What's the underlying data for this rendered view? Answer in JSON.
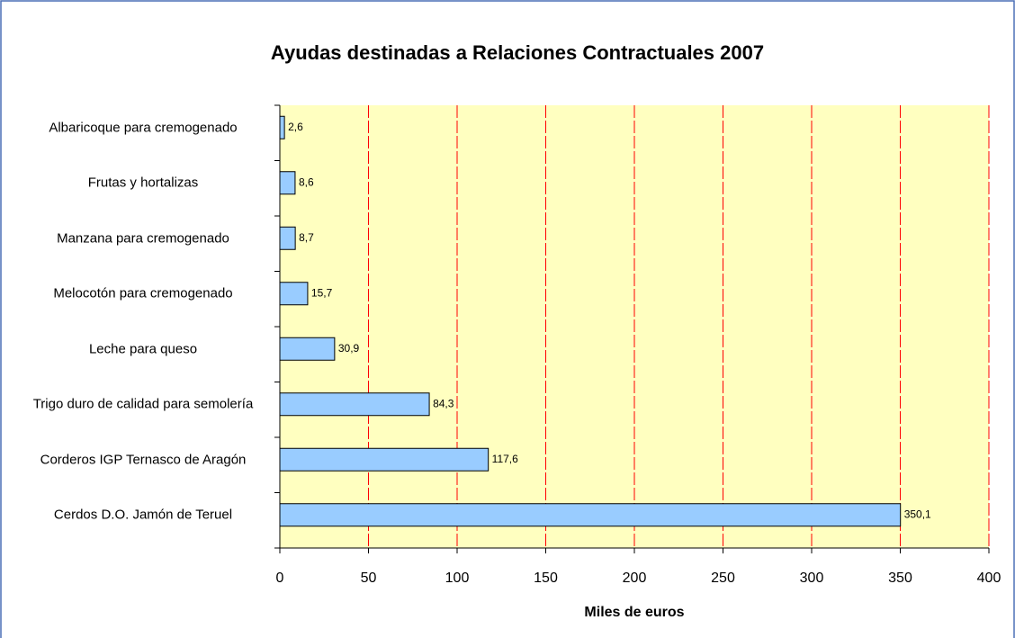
{
  "chart_data": {
    "type": "bar",
    "orientation": "horizontal",
    "title": "Ayudas destinadas a Relaciones Contractuales 2007",
    "xlabel": "Miles de euros",
    "categories": [
      "Albaricoque para cremogenado",
      "Frutas y hortalizas",
      "Manzana para cremogenado",
      "Melocotón para cremogenado",
      "Leche para queso",
      "Trigo duro de calidad para semolería",
      "Corderos IGP Ternasco de Aragón",
      "Cerdos D.O. Jamón de Teruel"
    ],
    "values": [
      2.6,
      8.6,
      8.7,
      15.7,
      30.9,
      84.3,
      117.6,
      350.1
    ],
    "value_labels": [
      "2,6",
      "8,6",
      "8,7",
      "15,7",
      "30,9",
      "84,3",
      "117,6",
      "350,1"
    ],
    "color": "#99ccff",
    "xlim": [
      0,
      400
    ],
    "xticks": [
      0,
      50,
      100,
      150,
      200,
      250,
      300,
      350,
      400
    ],
    "grid": true,
    "grid_color": "#ff0000",
    "plot_background": "#ffffc0"
  }
}
